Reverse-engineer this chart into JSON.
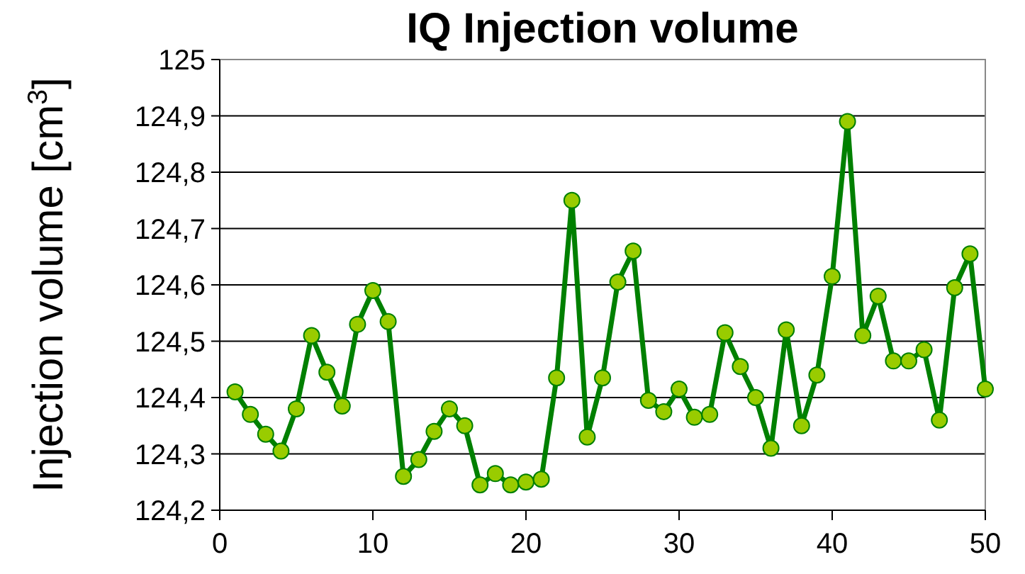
{
  "chart_data": {
    "type": "line",
    "title": "IQ Injection volume",
    "ylabel": "Injection volume [cm$^{3}$]",
    "x": [
      1,
      2,
      3,
      4,
      5,
      6,
      7,
      8,
      9,
      10,
      11,
      12,
      13,
      14,
      15,
      16,
      17,
      18,
      19,
      20,
      21,
      22,
      23,
      24,
      25,
      26,
      27,
      28,
      29,
      30,
      31,
      32,
      33,
      34,
      35,
      36,
      37,
      38,
      39,
      40,
      41,
      42,
      43,
      44,
      45,
      46,
      47,
      48,
      49,
      50
    ],
    "series": [
      {
        "color": "#008000",
        "values": [
          124.41,
          124.37,
          124.335,
          124.305,
          124.38,
          124.51,
          124.445,
          124.385,
          124.53,
          124.59,
          124.535,
          124.26,
          124.29,
          124.34,
          124.38,
          124.35,
          124.245,
          124.265,
          124.245,
          124.25,
          124.255,
          124.435,
          124.75,
          124.33,
          124.435,
          124.605,
          124.66,
          124.395,
          124.375,
          124.415,
          124.365,
          124.37,
          124.515,
          124.455,
          124.4,
          124.31,
          124.52,
          124.35,
          124.44,
          124.615,
          124.89,
          124.51,
          124.58,
          124.465,
          124.465,
          124.485,
          124.36,
          124.595,
          124.655,
          124.415
        ]
      }
    ],
    "marker": "circle",
    "line_style": "solid",
    "xlim": [
      0,
      50
    ],
    "xticks": [
      0,
      10,
      20,
      30,
      40,
      50
    ],
    "ylim": [
      124.2,
      125
    ],
    "yticks": [
      {
        "value": 124.2,
        "label": "124,2"
      },
      {
        "value": 124.3,
        "label": "124,3"
      },
      {
        "value": 124.4,
        "label": "124,4"
      },
      {
        "value": 124.5,
        "label": "124,5"
      },
      {
        "value": 124.6,
        "label": "124,6"
      },
      {
        "value": 124.7,
        "label": "124,7"
      },
      {
        "value": 124.8,
        "label": "124,8"
      },
      {
        "value": 124.9,
        "label": "124,9"
      },
      {
        "value": 125,
        "label": "125"
      }
    ],
    "grid": "y"
  }
}
